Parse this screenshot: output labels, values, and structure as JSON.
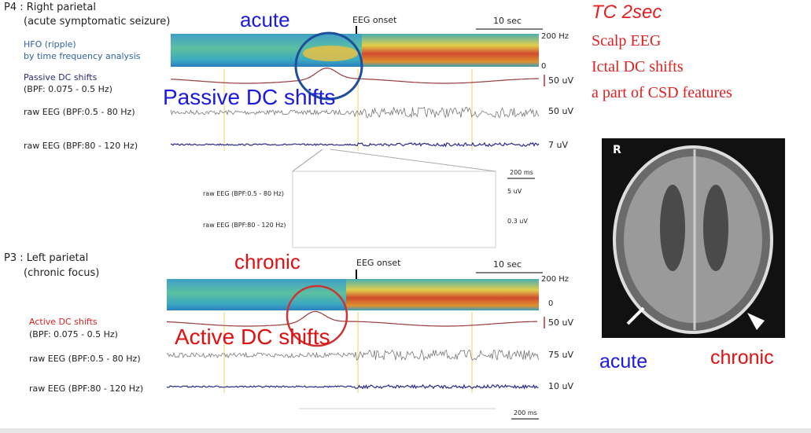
{
  "top_panel": {
    "title": "P4 : Right parietal",
    "subtitle": "(acute symptomatic seizure)",
    "hfo_label": [
      "HFO (ripple)",
      "by time frequency analysis"
    ],
    "dc_label": [
      "Passive DC shifts",
      "(BPF: 0.075 - 0.5 Hz)"
    ],
    "raw_label_low": "raw EEG (BPF:0.5 - 80 Hz)",
    "raw_label_high": "raw EEG (BPF:80 - 120 Hz)",
    "callout": "acute",
    "onset": "EEG onset",
    "time_scale": "10 sec",
    "freq_top": "200 Hz",
    "freq_bottom": "0",
    "dc_scale": "50 uV",
    "raw_low_scale": "50 uV",
    "raw_high_scale": "7 uV",
    "overlay": "Passive DC shifts"
  },
  "zoom_panel": {
    "time_scale": "200 ms",
    "raw_label_low": "raw EEG (BPF:0.5 - 80 Hz)",
    "raw_low_scale": "5 uV",
    "raw_label_high": "raw EEG (BPF:80 - 120 Hz)",
    "raw_high_scale": "0.3 uV"
  },
  "bottom_panel": {
    "title": "P3 : Left parietal",
    "subtitle": "(chronic focus)",
    "callout": "chronic",
    "onset": "EEG onset",
    "time_scale": "10 sec",
    "freq_top": "200 Hz",
    "freq_bottom": "0",
    "dc_label": [
      "Active DC shifts",
      "(BPF: 0.075 - 0.5 Hz)"
    ],
    "raw_label_low": "raw EEG (BPF:0.5 - 80 Hz)",
    "raw_label_high": "raw EEG (BPF:80 - 120 Hz)",
    "dc_scale": "50 uV",
    "raw_low_scale": "75 uV",
    "raw_high_scale": "10 uV",
    "overlay": "Active DC shifts",
    "zoom_time_scale": "200 ms"
  },
  "notes": {
    "title": "TC 2sec",
    "lines": [
      "Scalp EEG",
      "Ictal DC shifts",
      "a part of CSD features"
    ]
  },
  "mri": {
    "side": "R",
    "acute": "acute",
    "chronic": "chronic"
  }
}
